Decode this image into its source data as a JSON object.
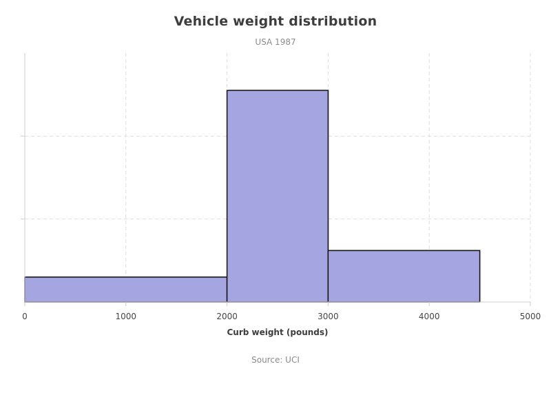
{
  "chart_data": {
    "type": "bar",
    "title": "Vehicle weight distribution",
    "subtitle": "USA 1987",
    "source": "Source: UCI",
    "xlabel": "Curb weight (pounds)",
    "ylabel": "",
    "xlim": [
      0,
      5000
    ],
    "x_ticks": [
      "0",
      "1000",
      "2000",
      "3000",
      "4000",
      "5000"
    ],
    "ylim": [
      0,
      30
    ],
    "grid": true,
    "bin_edges": [
      0,
      2000,
      3000,
      4500
    ],
    "values": [
      3,
      25.5,
      6.2
    ],
    "colors": {
      "bar_fill": "#a5a5e1",
      "bar_stroke": "#111111",
      "grid": "#dddddd",
      "axis": "#cccccc"
    }
  }
}
